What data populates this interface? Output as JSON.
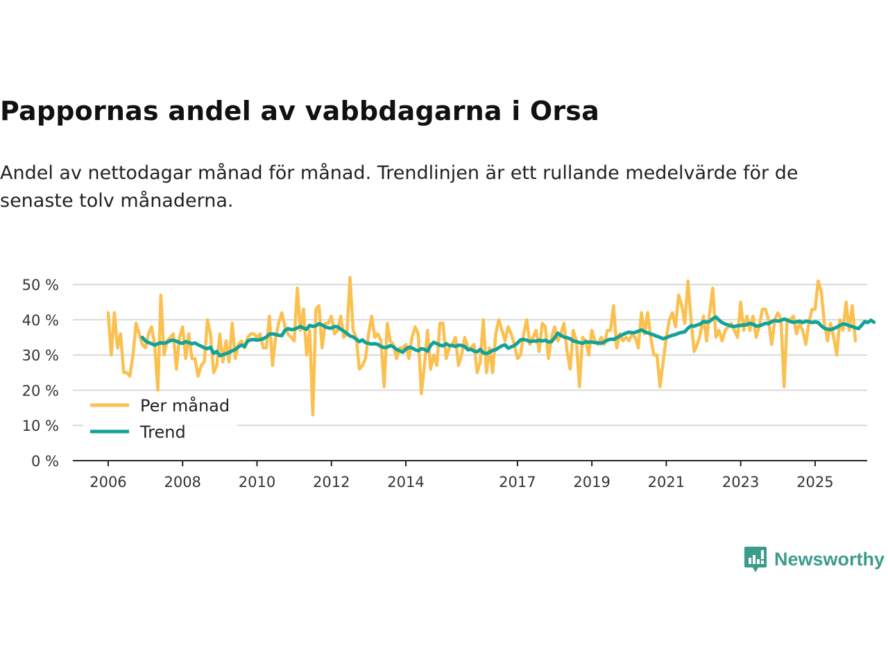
{
  "chart_data": {
    "type": "line",
    "title": "Pappornas andel av vabbdagarna i Orsa",
    "subtitle": "Andel av nettodagar månad för månad. Trendlinjen är ett rullande medelvärde för de senaste tolv månaderna.",
    "xlabel": "",
    "ylabel": "",
    "x_ticks": [
      2006,
      2008,
      2010,
      2012,
      2014,
      2017,
      2019,
      2021,
      2023,
      2025
    ],
    "y_ticks": [
      0,
      10,
      20,
      30,
      40,
      50
    ],
    "y_tick_labels": [
      "0 %",
      "10 %",
      "20 %",
      "30 %",
      "40 %",
      "50 %"
    ],
    "xlim": [
      2005.05,
      2026.4
    ],
    "ylim": [
      0,
      52
    ],
    "legend": "bottom-left",
    "series": [
      {
        "name": "Per månad",
        "color": "#fbc04f",
        "start": 2006.0,
        "step": 0.08333,
        "values": [
          42,
          30,
          42,
          32,
          36,
          25,
          25,
          24,
          30,
          39,
          36,
          33,
          32,
          36,
          38,
          33,
          20,
          47,
          30,
          34,
          35,
          36,
          26,
          35,
          38,
          29,
          36,
          29,
          29,
          24,
          27,
          28,
          40,
          36,
          25,
          27,
          36,
          28,
          34,
          28,
          39,
          29,
          33,
          34,
          32,
          35,
          36,
          36,
          35,
          36,
          32,
          32,
          41,
          27,
          35,
          39,
          42,
          38,
          36,
          35,
          34,
          49,
          37,
          43,
          30,
          37,
          13,
          43,
          44,
          32,
          39,
          39,
          41,
          36,
          37,
          41,
          35,
          36,
          52,
          37,
          35,
          26,
          27,
          29,
          36,
          41,
          35,
          36,
          34,
          21,
          39,
          34,
          33,
          29,
          32,
          32,
          33,
          29,
          35,
          38,
          36,
          19,
          27,
          37,
          26,
          30,
          27,
          39,
          39,
          29,
          32,
          33,
          35,
          27,
          30,
          35,
          32,
          32,
          33,
          25,
          28,
          40,
          25,
          32,
          25,
          36,
          40,
          37,
          34,
          38,
          36,
          33,
          29,
          30,
          36,
          40,
          33,
          35,
          37,
          31,
          39,
          38,
          29,
          35,
          38,
          34,
          36,
          39,
          31,
          26,
          37,
          34,
          21,
          35,
          34,
          30,
          37,
          34,
          33,
          35,
          33,
          37,
          37,
          44,
          32,
          36,
          34,
          35,
          34,
          36,
          35,
          32,
          42,
          36,
          42,
          35,
          30,
          30,
          21,
          28,
          35,
          40,
          42,
          38,
          47,
          44,
          39,
          51,
          40,
          31,
          33,
          36,
          41,
          34,
          42,
          49,
          35,
          37,
          34,
          37,
          38,
          39,
          37,
          35,
          45,
          37,
          41,
          37,
          41,
          35,
          38,
          43,
          43,
          40,
          33,
          40,
          42,
          40,
          21,
          40,
          40,
          41,
          36,
          39,
          37,
          33,
          39,
          43,
          43,
          51,
          48,
          39,
          34,
          39,
          35,
          30,
          40,
          37,
          45,
          37,
          44,
          34
        ]
      },
      {
        "name": "Trend",
        "color": "#13a298",
        "start": 2006.917,
        "step": 0.08333,
        "values": [
          35,
          34,
          33.5,
          33.2,
          32.8,
          33.2,
          33.5,
          33.3,
          33.6,
          34.1,
          34.2,
          33.9,
          33.5,
          33.3,
          33.8,
          33.5,
          33.2,
          33.4,
          32.9,
          32.5,
          32,
          31.8,
          32.2,
          30.5,
          31,
          29.8,
          30.1,
          30.4,
          30.7,
          31.2,
          31.6,
          32.3,
          32.8,
          32.4,
          34,
          34.3,
          34.4,
          34.2,
          34.4,
          34.6,
          35.1,
          35.9,
          36,
          35.8,
          35.6,
          35.5,
          37,
          37.5,
          37.2,
          37.3,
          37.7,
          38.1,
          37.6,
          37.3,
          38.4,
          38.1,
          38.3,
          38.9,
          38.5,
          38,
          37.7,
          37.6,
          38.1,
          38,
          37.3,
          36.8,
          36.1,
          35.4,
          35.1,
          34.5,
          33.8,
          34.3,
          33.5,
          33.3,
          33.1,
          33.2,
          33,
          32.4,
          32.1,
          32.2,
          32.7,
          32.3,
          31.6,
          31.2,
          30.8,
          31.7,
          32.2,
          32.0,
          31.5,
          31.2,
          31.8,
          31.6,
          31.1,
          32.7,
          33.6,
          33.2,
          32.8,
          32.6,
          33.2,
          32.7,
          32.7,
          32.4,
          32.8,
          32.7,
          32.4,
          31.5,
          31.6,
          31.1,
          30.9,
          31.6,
          30.6,
          30.4,
          30.8,
          31.3,
          31.5,
          32.1,
          32.6,
          32.9,
          31.9,
          32.3,
          32.7,
          33.4,
          34.3,
          34.4,
          34.2,
          33.8,
          34,
          33.9,
          34.2,
          34,
          34.2,
          33.7,
          33.8,
          34.9,
          36.2,
          35.6,
          35.1,
          34.9,
          34.6,
          34,
          33.8,
          33.5,
          33.3,
          33.8,
          33.6,
          33.7,
          33.5,
          33.4,
          33.3,
          33.7,
          34.2,
          34.5,
          34.4,
          34.9,
          35.4,
          35.8,
          36.2,
          36.5,
          36.3,
          36.4,
          36.8,
          37.1,
          36.6,
          36.3,
          36,
          35.7,
          35.3,
          35,
          34.6,
          34.9,
          35.3,
          35.6,
          35.8,
          36.2,
          36.4,
          36.6,
          37.6,
          38.3,
          38.2,
          38.5,
          38.8,
          39.5,
          39.3,
          39.6,
          40.3,
          40.8,
          39.9,
          39.2,
          38.8,
          38.5,
          38.2,
          38.1,
          38.3,
          38.4,
          38.5,
          38.6,
          39,
          38.7,
          38.2,
          38.3,
          38.6,
          39,
          38.9,
          39.5,
          39.8,
          39.6,
          39.8,
          40.2,
          39.9,
          39.5,
          39.3,
          39.4,
          39.6,
          39.2,
          39.6,
          39.5,
          39.2,
          39.4,
          39.2,
          38.3,
          37.6,
          37.3,
          37.2,
          37.5,
          37.9,
          38.4,
          38.8,
          38.7,
          38.3,
          38.1,
          37.7,
          37.5,
          38.4,
          39.5,
          39.2,
          39.9,
          39.3
        ]
      }
    ]
  },
  "brand": {
    "name": "Newsworthy",
    "color": "#3c9c8c"
  }
}
